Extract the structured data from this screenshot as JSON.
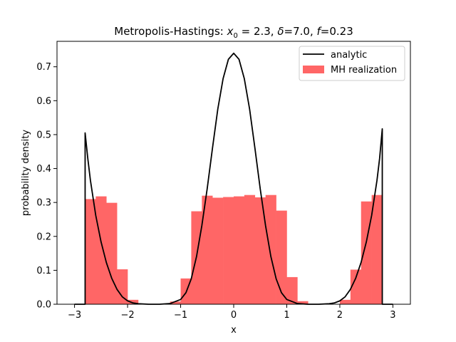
{
  "chart_data": {
    "type": "bar",
    "title": {
      "prefix": "Metropolis-Hastings: ",
      "x0_var": "x",
      "x0_sub": "0",
      "x0_value": " = 2.3, ",
      "delta_var": "δ",
      "delta_value": "=7.0, ",
      "f_var": "f",
      "f_value": "=0.23"
    },
    "xlabel": "x",
    "ylabel": "probability density",
    "xlim": [
      -3.33,
      3.33
    ],
    "ylim": [
      0,
      0.775
    ],
    "xticks": [
      -3,
      -2,
      -1,
      0,
      1,
      2,
      3
    ],
    "xtick_labels": [
      "−3",
      "−2",
      "−1",
      "0",
      "1",
      "2",
      "3"
    ],
    "yticks": [
      0.0,
      0.1,
      0.2,
      0.3,
      0.4,
      0.5,
      0.6,
      0.7
    ],
    "ytick_labels": [
      "0.0",
      "0.1",
      "0.2",
      "0.3",
      "0.4",
      "0.5",
      "0.6",
      "0.7"
    ],
    "legend_position": "top-right",
    "histogram": {
      "name": "MH realization",
      "color": "#ff6666",
      "bin_edges": [
        -2.8,
        -2.6,
        -2.4,
        -2.2,
        -2.0,
        -1.8,
        -1.6,
        -1.4,
        -1.2,
        -1.0,
        -0.8,
        -0.6,
        -0.4,
        -0.2,
        0.0,
        0.2,
        0.4,
        0.6,
        0.8,
        1.0,
        1.2,
        1.4,
        1.6,
        1.8,
        2.0,
        2.2,
        2.4,
        2.6,
        2.8
      ],
      "values": [
        0.31,
        0.318,
        0.299,
        0.103,
        0.013,
        0.0,
        0.0,
        0.0,
        0.008,
        0.076,
        0.274,
        0.32,
        0.314,
        0.316,
        0.318,
        0.322,
        0.315,
        0.322,
        0.276,
        0.08,
        0.009,
        0.0,
        0.0,
        0.0,
        0.013,
        0.102,
        0.303,
        0.322
      ]
    },
    "curve": {
      "name": "analytic",
      "color": "#000000",
      "x": [
        -3.0,
        -2.8,
        -2.8,
        -2.75,
        -2.7,
        -2.6,
        -2.5,
        -2.4,
        -2.3,
        -2.2,
        -2.1,
        -2.0,
        -1.9,
        -1.8,
        -1.6,
        -1.4,
        -1.2,
        -1.0,
        -0.9,
        -0.8,
        -0.7,
        -0.6,
        -0.5,
        -0.4,
        -0.3,
        -0.2,
        -0.1,
        0.0,
        0.1,
        0.2,
        0.3,
        0.4,
        0.5,
        0.6,
        0.7,
        0.8,
        0.9,
        1.0,
        1.2,
        1.4,
        1.6,
        1.8,
        1.9,
        2.0,
        2.1,
        2.2,
        2.3,
        2.4,
        2.5,
        2.6,
        2.7,
        2.75,
        2.8,
        2.8,
        3.0
      ],
      "y": [
        0.0,
        0.0,
        0.505,
        0.43,
        0.365,
        0.262,
        0.184,
        0.123,
        0.077,
        0.044,
        0.022,
        0.01,
        0.004,
        0.0015,
        0.0,
        0.0,
        0.002,
        0.014,
        0.034,
        0.075,
        0.141,
        0.232,
        0.34,
        0.46,
        0.575,
        0.665,
        0.722,
        0.74,
        0.722,
        0.665,
        0.575,
        0.46,
        0.34,
        0.232,
        0.141,
        0.075,
        0.034,
        0.014,
        0.002,
        0.0,
        0.0,
        0.0015,
        0.004,
        0.01,
        0.022,
        0.044,
        0.077,
        0.123,
        0.184,
        0.262,
        0.365,
        0.43,
        0.517,
        0.0,
        0.0
      ]
    }
  }
}
